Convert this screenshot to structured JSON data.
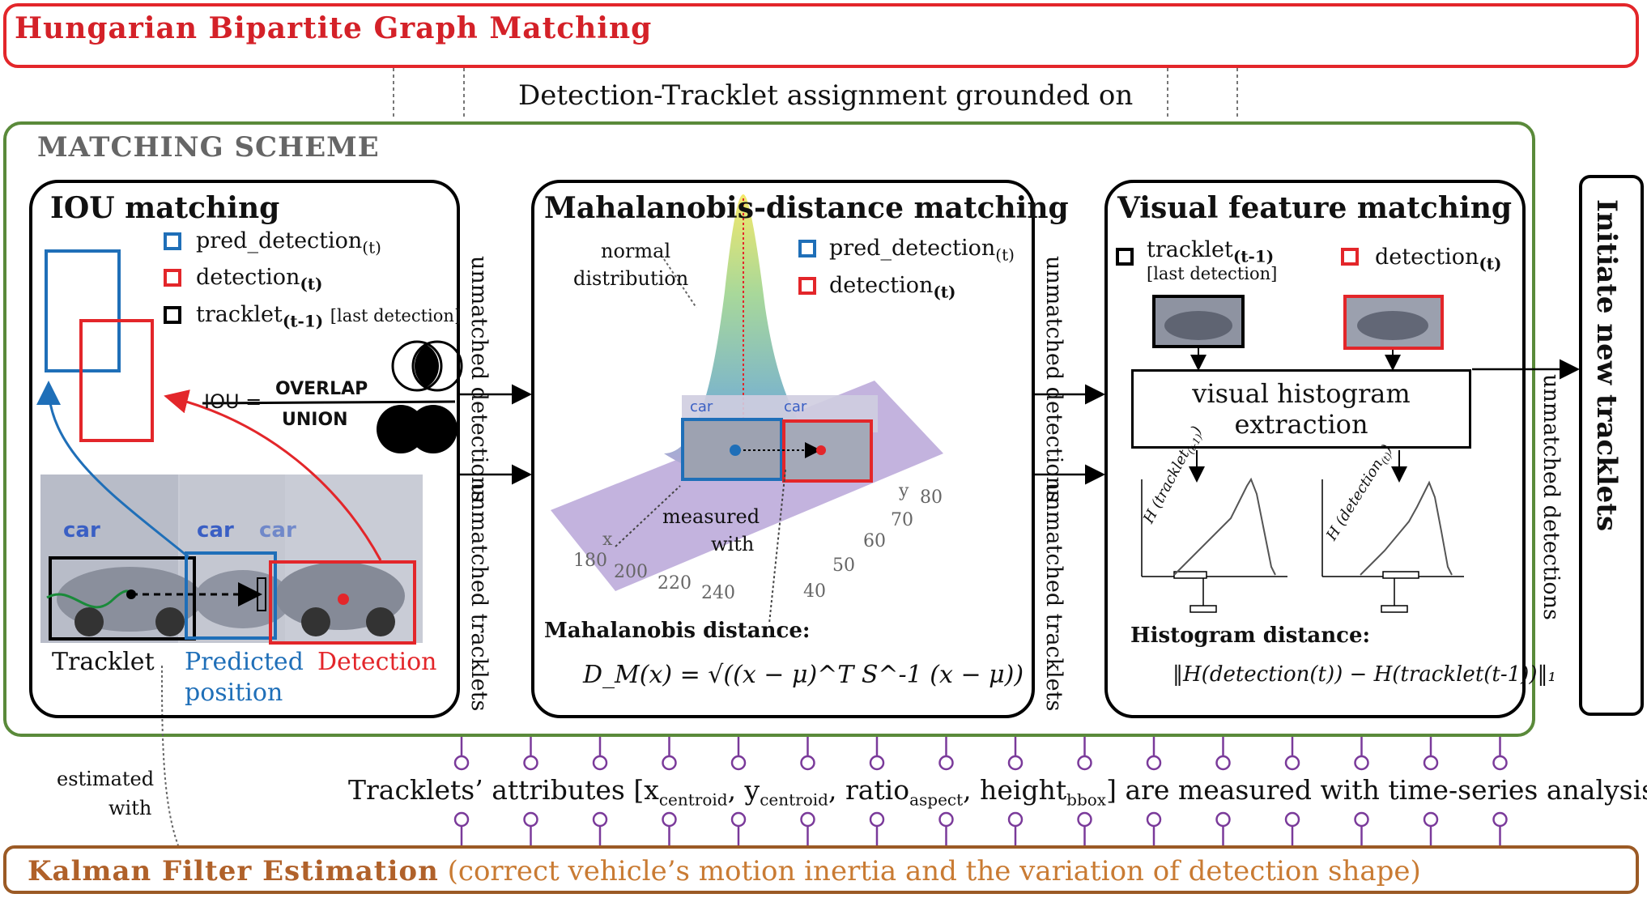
{
  "hungarian": {
    "title": "Hungarian Bipartite Graph Matching"
  },
  "assignment_text": "Detection-Tracklet assignment grounded on",
  "scheme": {
    "title": "MATCHING SCHEME"
  },
  "iou": {
    "title": "IOU matching",
    "legend": {
      "pred": "pred_detection",
      "pred_sub": "(t)",
      "det": "detection",
      "det_sub": "(t)",
      "trk": "tracklet",
      "trk_sub": "(t-1)",
      "trk_note": "[last detection]"
    },
    "formula_lhs": "IOU =",
    "formula_num": "OVERLAP",
    "formula_den": "UNION",
    "car_labels": [
      "car",
      "car",
      "car"
    ],
    "caption_tracklet": "Tracklet",
    "caption_predicted_1": "Predicted",
    "caption_predicted_2": "position",
    "caption_detection": "Detection"
  },
  "mahalanobis": {
    "title": "Mahalanobis-distance matching",
    "annotation_1": "normal",
    "annotation_2": "distribution",
    "legend": {
      "pred": "pred_detection",
      "pred_sub": "(t)",
      "det": "detection",
      "det_sub": "(t)"
    },
    "car_labels": [
      "car",
      "car"
    ],
    "measured_1": "measured",
    "measured_2": "with",
    "x_axis": "x",
    "y_axis": "y",
    "x_ticks": [
      "180",
      "200",
      "220",
      "240"
    ],
    "y_ticks": [
      "40",
      "50",
      "60",
      "70",
      "80"
    ],
    "distance_label": "Mahalanobis distance:",
    "formula": "D_M(x) = √((x − μ)^T S^-1 (x − μ))"
  },
  "visual": {
    "title": "Visual feature matching",
    "legend": {
      "trk": "tracklet",
      "trk_sub": "(t-1)",
      "trk_note": "[last detection]",
      "det": "detection",
      "det_sub": "(t)"
    },
    "histogram_box_1": "visual histogram",
    "histogram_box_2": "extraction",
    "hist_label_left": "H (tracklet",
    "hist_label_left_sub": "(t-1)",
    "hist_label_right": "H (detection",
    "hist_label_right_sub": "(t)",
    "distance_label": "Histogram distance:",
    "formula": "‖H(detection(t)) − H(tracklet(t-1))‖₁"
  },
  "connectors": {
    "unmatched_detections": "unmatched detections",
    "unmatched_tracklets": "unmatched tracklets"
  },
  "initiate": {
    "label": "Initiate new tracklets"
  },
  "estimated_1": "estimated",
  "estimated_2": "with",
  "attributes": {
    "prefix": "Tracklets’ attributes [x",
    "x_sub": "centroid",
    "y": ", y",
    "y_sub": "centroid",
    "ratio": ", ratio",
    "ratio_sub": "aspect",
    "height": ", height",
    "height_sub": "bbox",
    "suffix": "] are measured with time-series analysis"
  },
  "kalman": {
    "title": "Kalman Filter Estimation",
    "description": "(correct vehicle’s motion inertia and the variation of detection shape)"
  },
  "colors": {
    "red": "#e3262a",
    "blue": "#1f6fb8",
    "green": "#5a8a3a",
    "brown": "#9b5a25",
    "purple": "#7a3a9a"
  }
}
